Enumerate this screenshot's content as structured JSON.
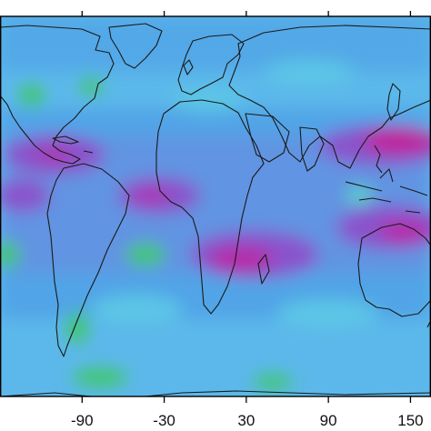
{
  "map": {
    "x_ticks": [
      "-90",
      "-30",
      "30",
      "90",
      "150"
    ],
    "x_tick_values": [
      -90,
      -30,
      30,
      90,
      150
    ],
    "x_range": [
      -150,
      165
    ],
    "colors": {
      "frame": "#000000",
      "coastline": "#1a1a1a",
      "background": "#5cb8ea",
      "low": "#3fc86a",
      "mid": "#4d9be6",
      "high": "#7b6fd8",
      "very_high": "#9a3fc4",
      "peak": "#c0209a"
    }
  }
}
